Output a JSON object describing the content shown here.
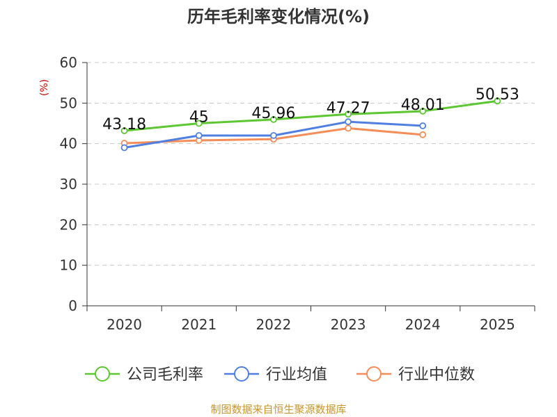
{
  "chart_data": {
    "type": "line",
    "title": "历年毛利率变化情况(%)",
    "ylabel": "(%)",
    "xlabel": "",
    "categories": [
      "2020",
      "2021",
      "2022",
      "2023",
      "2024",
      "2025"
    ],
    "ylim": [
      0,
      60
    ],
    "yticks": [
      "0",
      "10",
      "20",
      "30",
      "40",
      "50",
      "60"
    ],
    "grid": true,
    "legend_position": "bottom",
    "series": [
      {
        "name": "公司毛利率",
        "color": "#5cc731",
        "values": [
          43.18,
          45,
          45.96,
          47.27,
          48.01,
          50.53
        ],
        "labels": [
          "43.18",
          "45",
          "45.96",
          "47.27",
          "48.01",
          "50.53"
        ]
      },
      {
        "name": "行业均值",
        "color": "#4f7fe0",
        "values": [
          39.0,
          42.0,
          42.0,
          45.4,
          44.4,
          null
        ]
      },
      {
        "name": "行业中位数",
        "color": "#f58d58",
        "values": [
          40.1,
          40.8,
          41.1,
          43.8,
          42.2,
          null
        ]
      }
    ]
  },
  "footer": {
    "source": "制图数据来自恒生聚源数据库"
  }
}
